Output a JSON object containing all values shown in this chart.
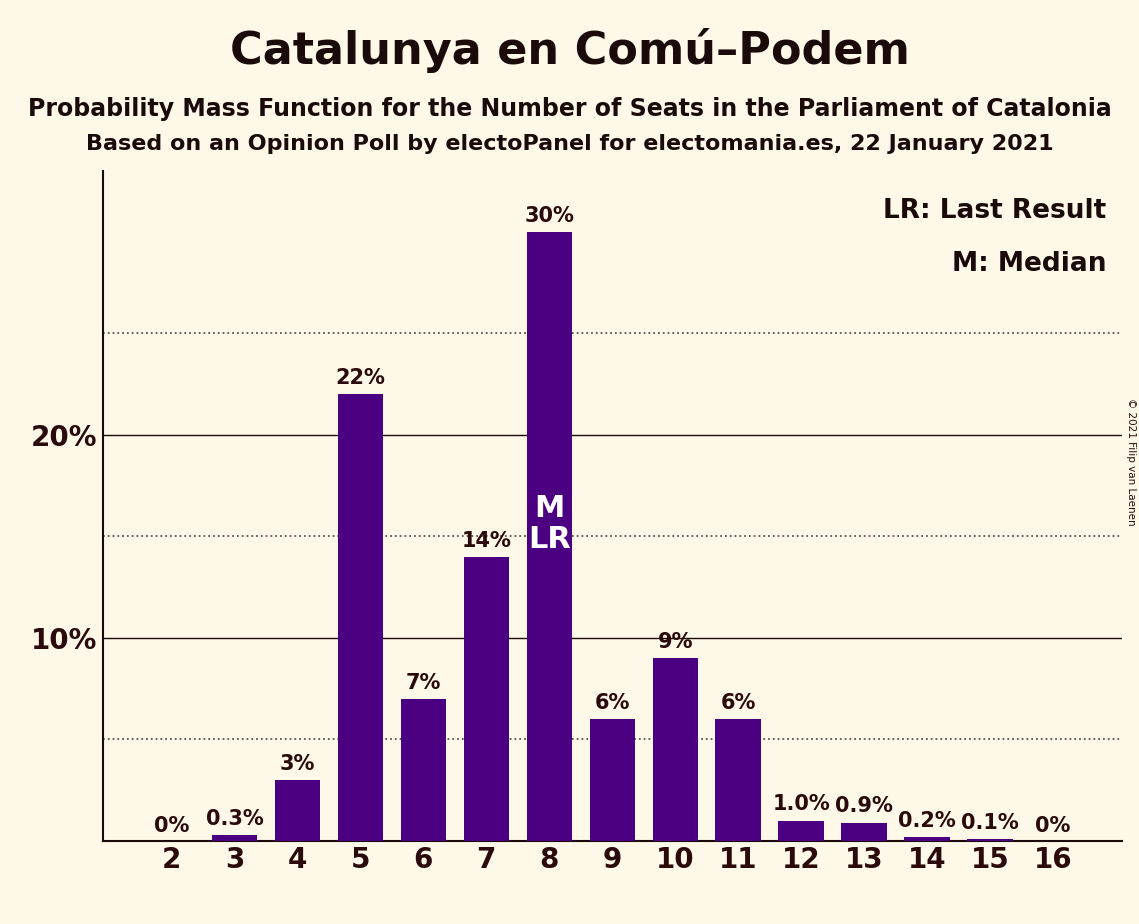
{
  "title": "Catalunya en Comú–Podem",
  "subtitle1": "Probability Mass Function for the Number of Seats in the Parliament of Catalonia",
  "subtitle2": "Based on an Opinion Poll by electoPanel for electomania.es, 22 January 2021",
  "categories": [
    2,
    3,
    4,
    5,
    6,
    7,
    8,
    9,
    10,
    11,
    12,
    13,
    14,
    15,
    16
  ],
  "values": [
    0.0,
    0.3,
    3.0,
    22.0,
    7.0,
    14.0,
    30.0,
    6.0,
    9.0,
    6.0,
    1.0,
    0.9,
    0.2,
    0.1,
    0.0
  ],
  "labels": [
    "0%",
    "0.3%",
    "3%",
    "22%",
    "7%",
    "14%",
    "30%",
    "6%",
    "9%",
    "6%",
    "1.0%",
    "0.9%",
    "0.2%",
    "0.1%",
    "0%"
  ],
  "bar_color": "#4b0082",
  "background_color": "#fdf8e8",
  "median_seat": 8,
  "last_result_seat": 8,
  "solid_lines": [
    10,
    20
  ],
  "dotted_lines": [
    5,
    15,
    25
  ],
  "ylim": [
    0,
    33
  ],
  "ytick_positions": [
    0,
    10,
    20
  ],
  "ytick_labels": [
    "",
    "10%",
    "20%"
  ],
  "legend_lr": "LR: Last Result",
  "legend_m": "M: Median",
  "copyright": "© 2021 Filip van Laenen",
  "title_fontsize": 32,
  "subtitle_fontsize": 17,
  "bar_label_fontsize": 15,
  "axis_label_fontsize": 20,
  "legend_fontsize": 19
}
